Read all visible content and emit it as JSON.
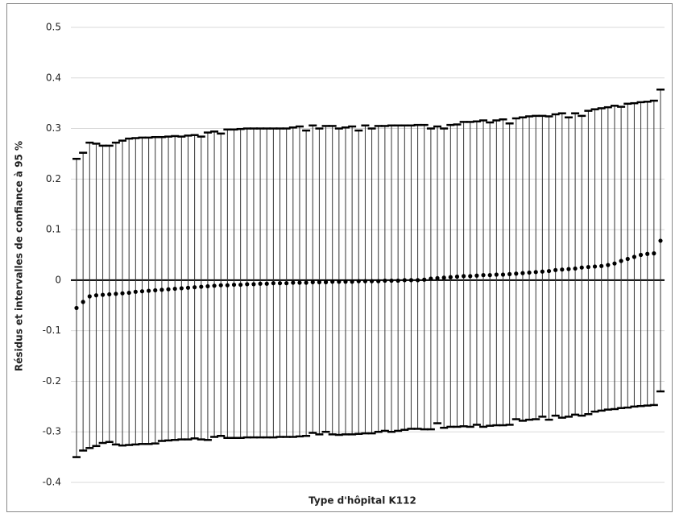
{
  "chart_data": {
    "type": "errorbar",
    "xlabel": "Type d'hôpital K112",
    "ylabel": "Résidus et intervalles de confiance à 95 %",
    "ylim": [
      -0.4,
      0.5
    ],
    "yticks": [
      -0.4,
      -0.3,
      -0.2,
      -0.1,
      0,
      0.1,
      0.2,
      0.3,
      0.4,
      0.5
    ],
    "grid": true,
    "color": "#000000",
    "values": [
      -0.055,
      -0.043,
      -0.032,
      -0.03,
      -0.029,
      -0.028,
      -0.027,
      -0.026,
      -0.025,
      -0.023,
      -0.022,
      -0.021,
      -0.02,
      -0.019,
      -0.018,
      -0.017,
      -0.016,
      -0.015,
      -0.014,
      -0.013,
      -0.012,
      -0.011,
      -0.01,
      -0.01,
      -0.009,
      -0.009,
      -0.008,
      -0.008,
      -0.007,
      -0.007,
      -0.006,
      -0.006,
      -0.006,
      -0.005,
      -0.005,
      -0.005,
      -0.004,
      -0.004,
      -0.004,
      -0.003,
      -0.003,
      -0.003,
      -0.003,
      -0.002,
      -0.002,
      -0.002,
      -0.002,
      -0.001,
      -0.001,
      -0.001,
      0.0,
      0.0,
      0.0,
      0.001,
      0.003,
      0.004,
      0.005,
      0.006,
      0.007,
      0.008,
      0.008,
      0.009,
      0.01,
      0.01,
      0.011,
      0.011,
      0.012,
      0.013,
      0.014,
      0.015,
      0.016,
      0.017,
      0.018,
      0.02,
      0.021,
      0.022,
      0.023,
      0.025,
      0.026,
      0.027,
      0.028,
      0.03,
      0.033,
      0.038,
      0.042,
      0.046,
      0.05,
      0.052,
      0.053,
      0.078
    ],
    "upper": [
      0.24,
      0.252,
      0.272,
      0.27,
      0.266,
      0.266,
      0.272,
      0.276,
      0.28,
      0.281,
      0.282,
      0.282,
      0.283,
      0.283,
      0.284,
      0.285,
      0.284,
      0.286,
      0.287,
      0.284,
      0.292,
      0.294,
      0.29,
      0.298,
      0.298,
      0.299,
      0.3,
      0.3,
      0.3,
      0.3,
      0.3,
      0.3,
      0.3,
      0.302,
      0.304,
      0.296,
      0.306,
      0.3,
      0.305,
      0.305,
      0.3,
      0.302,
      0.304,
      0.296,
      0.306,
      0.3,
      0.305,
      0.305,
      0.306,
      0.306,
      0.306,
      0.306,
      0.307,
      0.307,
      0.3,
      0.304,
      0.3,
      0.307,
      0.308,
      0.313,
      0.313,
      0.314,
      0.316,
      0.312,
      0.316,
      0.318,
      0.31,
      0.32,
      0.322,
      0.324,
      0.325,
      0.325,
      0.324,
      0.328,
      0.33,
      0.322,
      0.33,
      0.325,
      0.335,
      0.338,
      0.34,
      0.342,
      0.345,
      0.343,
      0.349,
      0.35,
      0.352,
      0.353,
      0.355,
      0.377
    ],
    "lower": [
      -0.35,
      -0.337,
      -0.332,
      -0.328,
      -0.322,
      -0.32,
      -0.325,
      -0.327,
      -0.326,
      -0.325,
      -0.324,
      -0.324,
      -0.323,
      -0.318,
      -0.317,
      -0.316,
      -0.315,
      -0.315,
      -0.313,
      -0.315,
      -0.316,
      -0.31,
      -0.308,
      -0.312,
      -0.312,
      -0.312,
      -0.311,
      -0.311,
      -0.311,
      -0.311,
      -0.311,
      -0.31,
      -0.31,
      -0.31,
      -0.309,
      -0.308,
      -0.302,
      -0.305,
      -0.3,
      -0.305,
      -0.306,
      -0.305,
      -0.305,
      -0.304,
      -0.303,
      -0.303,
      -0.3,
      -0.298,
      -0.3,
      -0.298,
      -0.296,
      -0.294,
      -0.294,
      -0.295,
      -0.295,
      -0.283,
      -0.292,
      -0.29,
      -0.29,
      -0.289,
      -0.29,
      -0.286,
      -0.29,
      -0.288,
      -0.287,
      -0.287,
      -0.286,
      -0.275,
      -0.278,
      -0.276,
      -0.275,
      -0.27,
      -0.276,
      -0.268,
      -0.272,
      -0.27,
      -0.266,
      -0.268,
      -0.265,
      -0.26,
      -0.258,
      -0.256,
      -0.255,
      -0.253,
      -0.252,
      -0.25,
      -0.249,
      -0.248,
      -0.247,
      -0.22
    ]
  }
}
